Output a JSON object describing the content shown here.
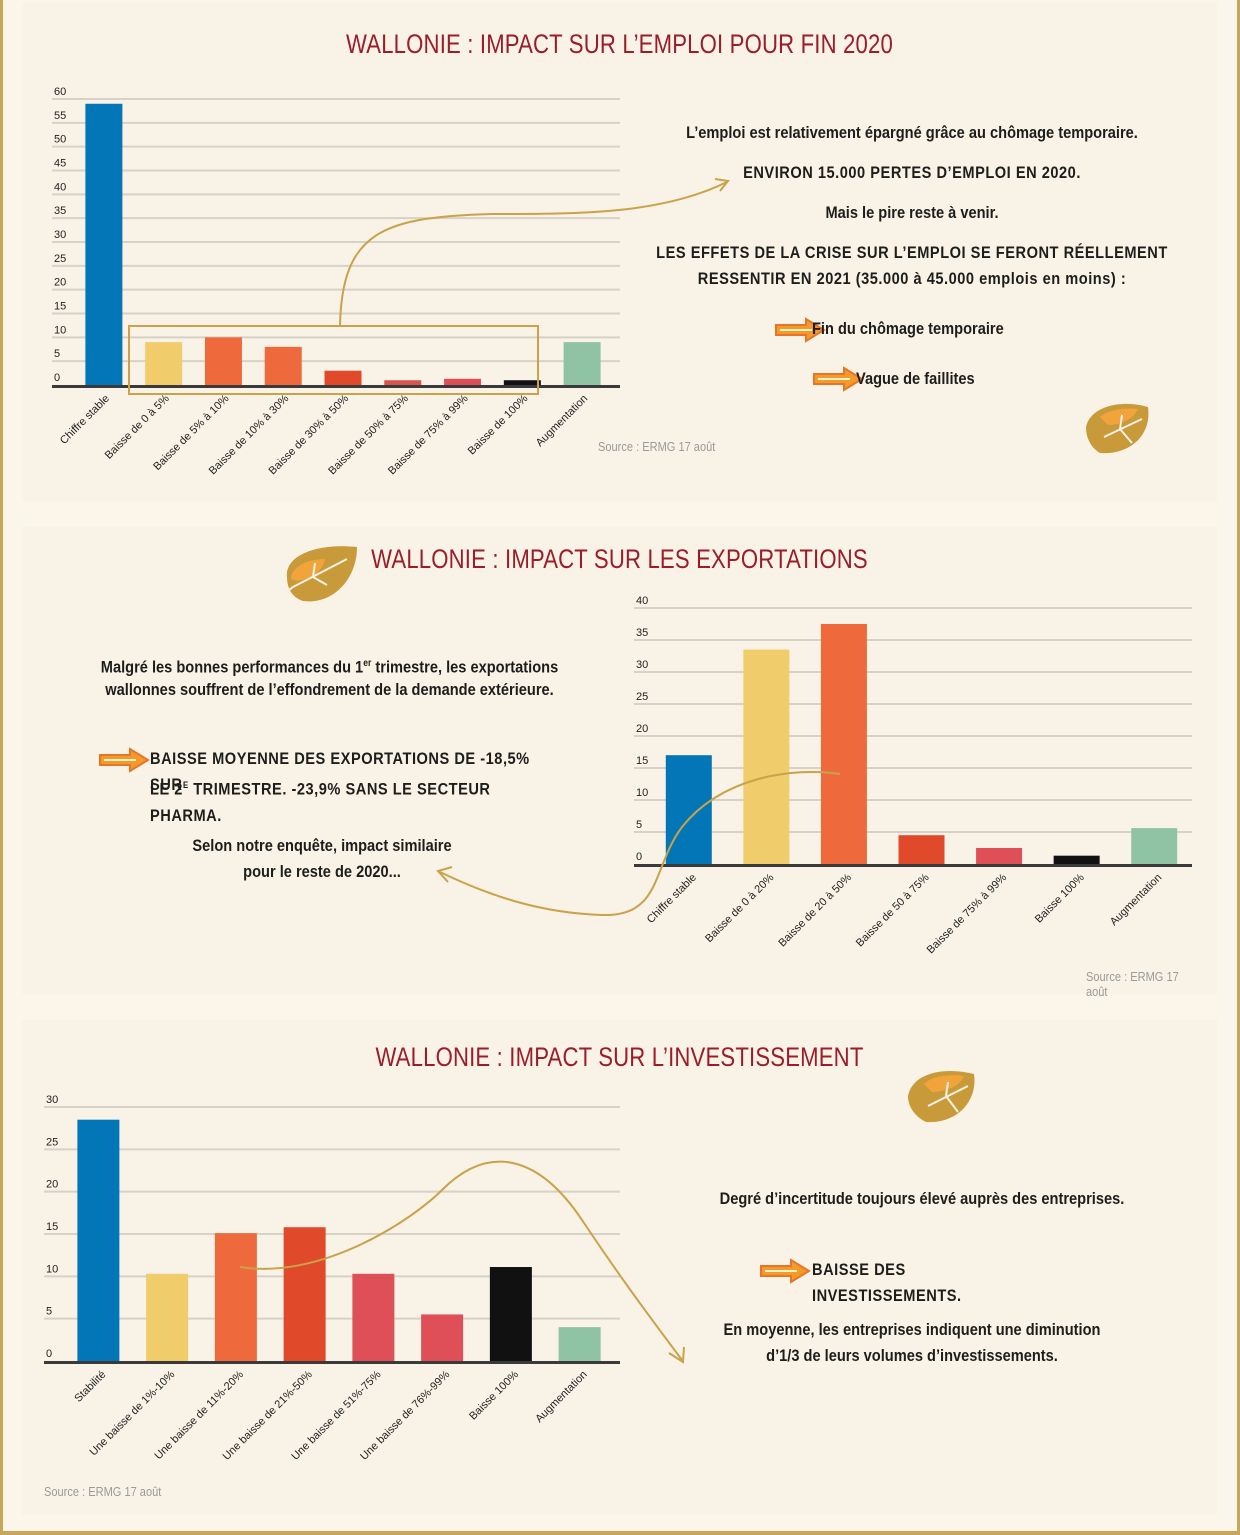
{
  "colors": {
    "title": "#9b1c2a",
    "gold": "#c9a24a",
    "blue": "#0276b6",
    "yellow": "#f0cc6a",
    "orange": "#ee6a3c",
    "red_orange": "#e04a2a",
    "red": "#d9534f",
    "pink_red": "#de4f57",
    "black": "#111111",
    "green": "#8fc3a3"
  },
  "panel1": {
    "title": "WALLONIE : IMPACT SUR L’EMPLOI POUR FIN 2020",
    "text1": "L’emploi est relativement épargné grâce au chômage temporaire.",
    "text2": "ENVIRON 15.000 PERTES D’EMPLOI EN 2020.",
    "text3": "Mais le pire reste à venir.",
    "text4a": "LES EFFETS DE LA CRISE SUR L’EMPLOI SE FERONT RÉELLEMENT",
    "text4b": "RESSENTIR EN 2021 (35.000 à 45.000 emplois en moins) :",
    "bullet1": "Fin du chômage temporaire",
    "bullet2": "Vague de faillites",
    "source": "Source : ERMG 17 août"
  },
  "panel2": {
    "title": "WALLONIE : IMPACT SUR LES EXPORTATIONS",
    "text1a_pre": "Malgré les bonnes performances du 1",
    "text1a_sup": "er",
    "text1a_post": " trimestre, les exportations",
    "text1b": "wallonnes souffrent de l’effondrement de la demande extérieure.",
    "text2a": "BAISSE MOYENNE DES EXPORTATIONS DE -18,5% SUR",
    "text2b_pre": "LE 2",
    "text2b_sup": "E",
    "text2b_post": " TRIMESTRE. -23,9% SANS LE SECTEUR PHARMA.",
    "text3a": "Selon notre enquête, impact similaire",
    "text3b": "pour le reste de 2020...",
    "source": "Source : ERMG 17 août"
  },
  "panel3": {
    "title": "WALLONIE : IMPACT SUR L’INVESTISSEMENT",
    "text1": "Degré d’incertitude toujours élevé auprès des entreprises.",
    "text2": "BAISSE DES INVESTISSEMENTS.",
    "text3a": "En moyenne, les entreprises indiquent une diminution",
    "text3b": "d’1/3 de leurs volumes d’investissements.",
    "source": "Source : ERMG 17 août"
  },
  "chart_data": [
    {
      "type": "bar",
      "title": "",
      "categories": [
        "Chiffre stable",
        "Baisse de 0 à 5%",
        "Baisse de 5% à 10%",
        "Baisse de 10% à 30%",
        "Baisse de 30% à 50%",
        "Baisse de 50% à 75%",
        "Baisse de 75% à 99%",
        "Baisse de 100%",
        "Augmentation"
      ],
      "values": [
        59,
        9,
        10,
        8,
        3,
        1,
        1.3,
        1,
        9
      ],
      "ylim": [
        0,
        60
      ],
      "yticks": [
        0,
        5,
        10,
        15,
        20,
        25,
        30,
        35,
        40,
        45,
        50,
        55,
        60
      ],
      "grid": true,
      "bar_colors": [
        "#0276b6",
        "#f0cc6a",
        "#ee6a3c",
        "#ee6a3c",
        "#e04a2a",
        "#d9534f",
        "#de4f57",
        "#111111",
        "#8fc3a3"
      ]
    },
    {
      "type": "bar",
      "title": "",
      "categories": [
        "Chiffre stable",
        "Baisse de 0 à 20%",
        "Baisse de 20 à 50%",
        "Baisse de 50 à 75%",
        "Baisse de 75% à 99%",
        "Baisse 100%",
        "Augmentation"
      ],
      "values": [
        17,
        33.5,
        37.5,
        4.5,
        2.5,
        1.3,
        5.6
      ],
      "ylim": [
        0,
        40
      ],
      "yticks": [
        0,
        5,
        10,
        15,
        20,
        25,
        30,
        35,
        40
      ],
      "grid": true,
      "bar_colors": [
        "#0276b6",
        "#f0cc6a",
        "#ee6a3c",
        "#e04a2a",
        "#de4f57",
        "#111111",
        "#8fc3a3"
      ]
    },
    {
      "type": "bar",
      "title": "",
      "categories": [
        "Stabilité",
        "Une baisse de 1%-10%",
        "Une baisse de 11%-20%",
        "Une baisse de 21%-50%",
        "Une baisse de 51%-75%",
        "Une baisse de 76%-99%",
        "Baisse 100%",
        "Augmentation"
      ],
      "values": [
        28.5,
        10.3,
        15.1,
        15.8,
        10.3,
        5.5,
        11.1,
        4
      ],
      "ylim": [
        0,
        30
      ],
      "yticks": [
        0,
        5,
        10,
        15,
        20,
        25,
        30
      ],
      "grid": true,
      "bar_colors": [
        "#0276b6",
        "#f0cc6a",
        "#ee6a3c",
        "#e04a2a",
        "#de4f57",
        "#de4f57",
        "#111111",
        "#8fc3a3"
      ]
    }
  ]
}
